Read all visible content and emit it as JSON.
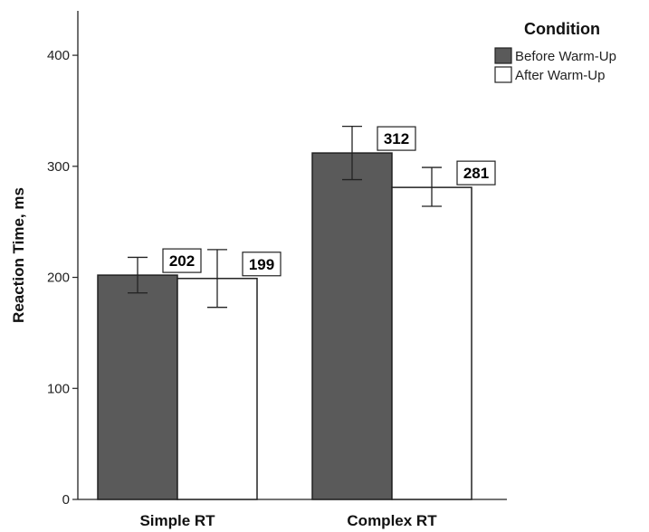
{
  "chart_data": {
    "type": "bar",
    "title": "",
    "xlabel": "",
    "ylabel": "Reaction Time, ms",
    "ylim": [
      0,
      440
    ],
    "yticks": [
      0,
      100,
      200,
      300,
      400
    ],
    "categories": [
      "Simple RT",
      "Complex RT"
    ],
    "legend": {
      "title": "Condition",
      "placement": "top-right"
    },
    "grid": false,
    "series": [
      {
        "name": "Before Warm-Up",
        "values": [
          202,
          312
        ],
        "error_low": [
          186,
          288
        ],
        "error_high": [
          218,
          336
        ],
        "color": "#5a5a5a"
      },
      {
        "name": "After Warm-Up",
        "values": [
          199,
          281
        ],
        "error_low": [
          173,
          264
        ],
        "error_high": [
          225,
          299
        ],
        "color": "#ffffff"
      }
    ],
    "data_labels": [
      [
        "202",
        "312"
      ],
      [
        "199",
        "281"
      ]
    ]
  }
}
